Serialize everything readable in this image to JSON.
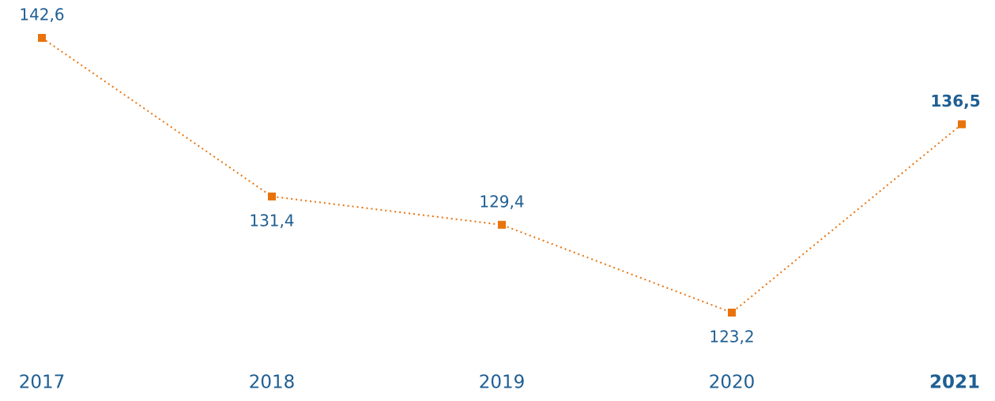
{
  "chart_data": {
    "type": "line",
    "categories": [
      "2017",
      "2018",
      "2019",
      "2020",
      "2021"
    ],
    "series": [
      {
        "color": "#e8730c",
        "values": [
          142.6,
          131.4,
          129.4,
          123.2,
          136.5
        ],
        "value_labels": [
          "142,6",
          "131,4",
          "129,4",
          "123,2",
          "136,5"
        ]
      }
    ]
  }
}
